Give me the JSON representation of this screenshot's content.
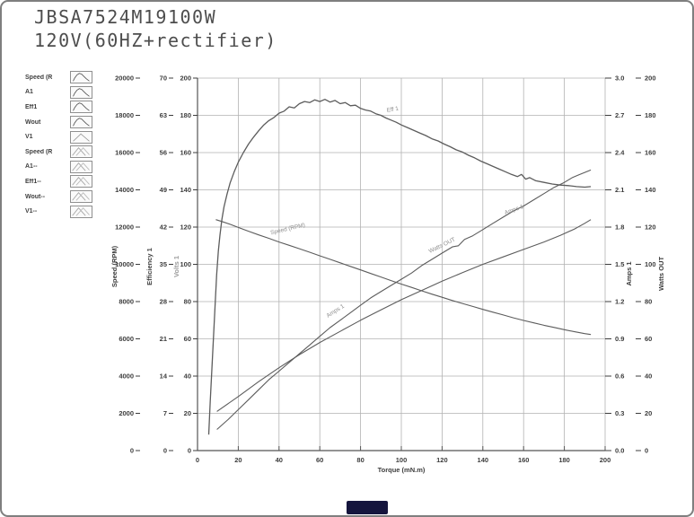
{
  "window": {
    "title_line1": "JBSA7524M19100W",
    "title_line2": "120V(60HZ+rectifier)"
  },
  "legend": {
    "items": [
      {
        "label": "Speed (R",
        "swatch": "hump-dark"
      },
      {
        "label": "A1",
        "swatch": "hump-dark"
      },
      {
        "label": "Eff1",
        "swatch": "hump-dark"
      },
      {
        "label": "Wout",
        "swatch": "hump-dark"
      },
      {
        "label": "V1",
        "swatch": "peak-light"
      },
      {
        "label": "Speed (R",
        "swatch": "cross-light"
      },
      {
        "label": "A1--",
        "swatch": "cross-light"
      },
      {
        "label": "Eff1--",
        "swatch": "cross-light"
      },
      {
        "label": "Wout--",
        "swatch": "cross-light"
      },
      {
        "label": "V1--",
        "swatch": "cross-light"
      }
    ]
  },
  "chart_data": {
    "type": "line",
    "xlabel": "Torque (mN.m)",
    "grid": true,
    "x_axis": {
      "min": 0,
      "max": 200,
      "step": 20
    },
    "left_axes": [
      {
        "label": "Speed (RPM)",
        "min": 0,
        "max": 20000,
        "step": 2000,
        "decimals": 0
      },
      {
        "label": "Efficiency 1",
        "min": 0,
        "max": 70,
        "step": 7,
        "decimals": 0
      },
      {
        "label": "Volts 1",
        "min": 0,
        "max": 200,
        "step": 20,
        "decimals": 0
      }
    ],
    "right_axes": [
      {
        "label": "Amps 1",
        "min": 0,
        "max": 3.0,
        "step": 0.3,
        "decimals": 1
      },
      {
        "label": "Watts OUT",
        "min": 0,
        "max": 200,
        "step": 20,
        "decimals": 0
      }
    ],
    "series": [
      {
        "name": "Eff 1",
        "axis": "Efficiency 1",
        "points": [
          [
            5.5,
            3
          ],
          [
            6.2,
            9
          ],
          [
            7,
            15
          ],
          [
            7.8,
            21
          ],
          [
            8.6,
            27
          ],
          [
            9.4,
            33
          ],
          [
            10.2,
            37.5
          ],
          [
            11,
            40.5
          ],
          [
            12,
            43.5
          ],
          [
            13,
            45.8
          ],
          [
            14.5,
            48.2
          ],
          [
            16,
            50.3
          ],
          [
            18,
            52.4
          ],
          [
            20,
            54.2
          ],
          [
            22.5,
            56
          ],
          [
            25,
            57.6
          ],
          [
            27.5,
            58.9
          ],
          [
            30,
            60.1
          ],
          [
            32.5,
            61.2
          ],
          [
            35,
            62
          ],
          [
            37.5,
            62.6
          ],
          [
            40,
            63.4
          ],
          [
            42.5,
            63.8
          ],
          [
            45,
            64.6
          ],
          [
            47.5,
            64.4
          ],
          [
            50,
            65.2
          ],
          [
            52.5,
            65.6
          ],
          [
            55,
            65.4
          ],
          [
            57.5,
            65.9
          ],
          [
            60,
            65.6
          ],
          [
            62.5,
            66
          ],
          [
            65,
            65.5
          ],
          [
            67.5,
            65.8
          ],
          [
            70,
            65.2
          ],
          [
            72.5,
            65.4
          ],
          [
            75,
            64.8
          ],
          [
            77.5,
            64.9
          ],
          [
            80,
            64.3
          ],
          [
            82.5,
            64
          ],
          [
            85,
            63.8
          ],
          [
            87.5,
            63.3
          ],
          [
            90,
            63
          ],
          [
            92.5,
            62.5
          ],
          [
            95,
            62.1
          ],
          [
            97.5,
            61.7
          ],
          [
            100,
            61.2
          ],
          [
            103,
            60.7
          ],
          [
            106,
            60.2
          ],
          [
            109,
            59.7
          ],
          [
            112,
            59.2
          ],
          [
            115,
            58.6
          ],
          [
            118,
            58.2
          ],
          [
            121,
            57.6
          ],
          [
            124,
            57.1
          ],
          [
            127,
            56.5
          ],
          [
            130,
            56.1
          ],
          [
            133,
            55.5
          ],
          [
            136,
            55
          ],
          [
            139,
            54.4
          ],
          [
            142,
            53.9
          ],
          [
            145,
            53.4
          ],
          [
            148,
            52.9
          ],
          [
            151,
            52.4
          ],
          [
            154,
            51.9
          ],
          [
            157,
            51.5
          ],
          [
            159,
            51.9
          ],
          [
            161,
            51
          ],
          [
            163,
            51.3
          ],
          [
            166,
            50.7
          ],
          [
            170,
            50.4
          ],
          [
            174,
            50.1
          ],
          [
            178,
            49.9
          ],
          [
            182,
            49.8
          ],
          [
            186,
            49.6
          ],
          [
            190,
            49.5
          ],
          [
            193,
            49.6
          ]
        ]
      },
      {
        "name": "Speed (RPM)",
        "axis": "Speed (RPM)",
        "points": [
          [
            9,
            12400
          ],
          [
            12,
            12300
          ],
          [
            16,
            12150
          ],
          [
            20,
            11980
          ],
          [
            25,
            11780
          ],
          [
            30,
            11580
          ],
          [
            35,
            11400
          ],
          [
            40,
            11200
          ],
          [
            45,
            11020
          ],
          [
            50,
            10840
          ],
          [
            55,
            10650
          ],
          [
            60,
            10460
          ],
          [
            65,
            10270
          ],
          [
            70,
            10080
          ],
          [
            75,
            9890
          ],
          [
            80,
            9700
          ],
          [
            85,
            9510
          ],
          [
            90,
            9320
          ],
          [
            95,
            9130
          ],
          [
            100,
            8940
          ],
          [
            105,
            8760
          ],
          [
            110,
            8580
          ],
          [
            115,
            8400
          ],
          [
            120,
            8230
          ],
          [
            125,
            8060
          ],
          [
            130,
            7900
          ],
          [
            135,
            7740
          ],
          [
            140,
            7580
          ],
          [
            145,
            7430
          ],
          [
            150,
            7280
          ],
          [
            155,
            7130
          ],
          [
            160,
            6990
          ],
          [
            165,
            6860
          ],
          [
            170,
            6730
          ],
          [
            175,
            6610
          ],
          [
            180,
            6490
          ],
          [
            185,
            6380
          ],
          [
            190,
            6280
          ],
          [
            193,
            6230
          ]
        ]
      },
      {
        "name": "Amps 1",
        "axis": "Amps 1",
        "points": [
          [
            9.5,
            0.17
          ],
          [
            15,
            0.25
          ],
          [
            20,
            0.33
          ],
          [
            25,
            0.41
          ],
          [
            30,
            0.49
          ],
          [
            35,
            0.57
          ],
          [
            40,
            0.64
          ],
          [
            45,
            0.71
          ],
          [
            50,
            0.78
          ],
          [
            55,
            0.85
          ],
          [
            60,
            0.92
          ],
          [
            65,
            0.99
          ],
          [
            70,
            1.05
          ],
          [
            75,
            1.11
          ],
          [
            80,
            1.17
          ],
          [
            85,
            1.23
          ],
          [
            90,
            1.28
          ],
          [
            95,
            1.33
          ],
          [
            100,
            1.38
          ],
          [
            105,
            1.43
          ],
          [
            110,
            1.49
          ],
          [
            115,
            1.54
          ],
          [
            120,
            1.59
          ],
          [
            125,
            1.64
          ],
          [
            128,
            1.65
          ],
          [
            131,
            1.7
          ],
          [
            135,
            1.73
          ],
          [
            140,
            1.78
          ],
          [
            145,
            1.83
          ],
          [
            150,
            1.88
          ],
          [
            155,
            1.93
          ],
          [
            160,
            1.97
          ],
          [
            165,
            2.02
          ],
          [
            170,
            2.07
          ],
          [
            175,
            2.12
          ],
          [
            180,
            2.16
          ],
          [
            184,
            2.2
          ],
          [
            187,
            2.22
          ],
          [
            190,
            2.24
          ],
          [
            193,
            2.26
          ]
        ]
      },
      {
        "name": "Watts OUT",
        "axis": "Watts OUT",
        "points": [
          [
            9.5,
            21
          ],
          [
            20,
            29
          ],
          [
            30,
            37
          ],
          [
            40,
            44.5
          ],
          [
            50,
            51.5
          ],
          [
            60,
            58
          ],
          [
            70,
            64
          ],
          [
            80,
            70
          ],
          [
            90,
            75.5
          ],
          [
            100,
            81
          ],
          [
            110,
            86
          ],
          [
            120,
            91
          ],
          [
            130,
            95.5
          ],
          [
            140,
            100
          ],
          [
            150,
            104
          ],
          [
            160,
            108
          ],
          [
            170,
            112
          ],
          [
            178,
            115.5
          ],
          [
            185,
            119
          ],
          [
            190,
            122
          ],
          [
            193,
            124
          ]
        ]
      }
    ],
    "annotations": [
      {
        "text": "Speed (RPM)",
        "axis": "Speed (RPM)",
        "x": 36,
        "value": 11600,
        "rot": -13
      },
      {
        "text": "Eff 1",
        "axis": "Efficiency 1",
        "x": 93,
        "value": 63.6,
        "rot": -10
      },
      {
        "text": "Amps 1",
        "axis": "Amps 1",
        "x": 64,
        "value": 1.07,
        "rot": -33
      },
      {
        "text": "Watts OUT",
        "axis": "Watts OUT",
        "x": 114,
        "value": 106,
        "rot": -26
      },
      {
        "text": "Amps 1",
        "axis": "Amps 1",
        "x": 151,
        "value": 1.9,
        "rot": -20
      }
    ]
  },
  "colors": {
    "curve": "#5c5c5c",
    "grid": "#b2b2b2",
    "spine": "#555555",
    "text": "#3d3d3d",
    "faint_label": "#8f8f8f",
    "title": "#4d4d4d",
    "logo_bg": "#15153d"
  }
}
